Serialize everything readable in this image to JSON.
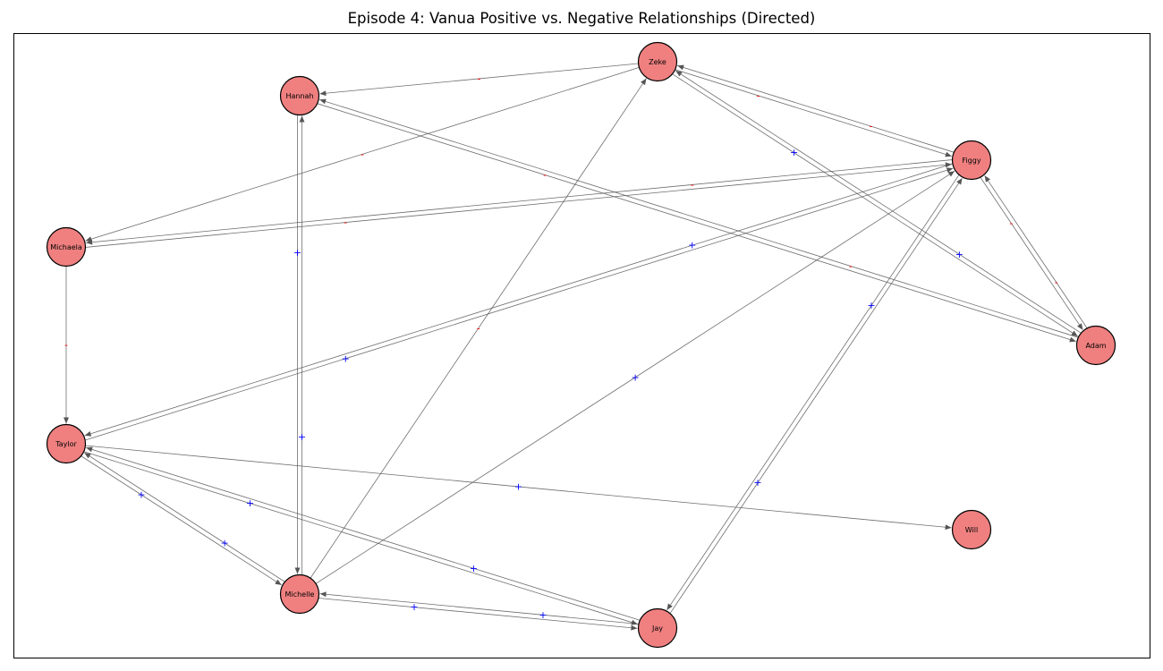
{
  "title": "Episode 4: Vanua Positive vs. Negative Relationships (Directed)",
  "colors": {
    "node_fill": "#f08080",
    "node_stroke": "#000000",
    "edge": "#555555",
    "positive": "#0000ff",
    "negative": "#ff0000"
  },
  "nodes": [
    {
      "id": "Zeke",
      "label": "Zeke"
    },
    {
      "id": "Hannah",
      "label": "Hannah"
    },
    {
      "id": "Figgy",
      "label": "Figgy"
    },
    {
      "id": "Michaela",
      "label": "Michaela"
    },
    {
      "id": "Adam",
      "label": "Adam"
    },
    {
      "id": "Taylor",
      "label": "Taylor"
    },
    {
      "id": "Will",
      "label": "Will"
    },
    {
      "id": "Michelle",
      "label": "Michelle"
    },
    {
      "id": "Jay",
      "label": "Jay"
    }
  ],
  "edges": [
    {
      "from": "Zeke",
      "to": "Hannah",
      "sign": "-"
    },
    {
      "from": "Zeke",
      "to": "Michaela",
      "sign": "-"
    },
    {
      "from": "Zeke",
      "to": "Figgy",
      "sign": "-"
    },
    {
      "from": "Figgy",
      "to": "Zeke",
      "sign": "-"
    },
    {
      "from": "Figgy",
      "to": "Michaela",
      "sign": "-"
    },
    {
      "from": "Figgy",
      "to": "Taylor",
      "sign": "+"
    },
    {
      "from": "Figgy",
      "to": "Adam",
      "sign": "-"
    },
    {
      "from": "Figgy",
      "to": "Jay",
      "sign": "+"
    },
    {
      "from": "Adam",
      "to": "Figgy",
      "sign": "-"
    },
    {
      "from": "Adam",
      "to": "Zeke",
      "sign": "+"
    },
    {
      "from": "Adam",
      "to": "Hannah",
      "sign": "-"
    },
    {
      "from": "Zeke",
      "to": "Adam",
      "sign": "+"
    },
    {
      "from": "Hannah",
      "to": "Adam",
      "sign": "-"
    },
    {
      "from": "Michaela",
      "to": "Figgy",
      "sign": "-"
    },
    {
      "from": "Michaela",
      "to": "Taylor",
      "sign": "-"
    },
    {
      "from": "Hannah",
      "to": "Michelle",
      "sign": "+"
    },
    {
      "from": "Michelle",
      "to": "Hannah",
      "sign": "+"
    },
    {
      "from": "Michelle",
      "to": "Zeke",
      "sign": "-"
    },
    {
      "from": "Michelle",
      "to": "Figgy",
      "sign": "+"
    },
    {
      "from": "Jay",
      "to": "Figgy",
      "sign": "+"
    },
    {
      "from": "Taylor",
      "to": "Figgy",
      "sign": "+"
    },
    {
      "from": "Taylor",
      "to": "Will",
      "sign": "+"
    },
    {
      "from": "Taylor",
      "to": "Michelle",
      "sign": "+"
    },
    {
      "from": "Michelle",
      "to": "Taylor",
      "sign": "+"
    },
    {
      "from": "Taylor",
      "to": "Jay",
      "sign": "+"
    },
    {
      "from": "Jay",
      "to": "Taylor",
      "sign": "+"
    },
    {
      "from": "Michelle",
      "to": "Jay",
      "sign": "+"
    },
    {
      "from": "Jay",
      "to": "Michelle",
      "sign": "+"
    }
  ]
}
